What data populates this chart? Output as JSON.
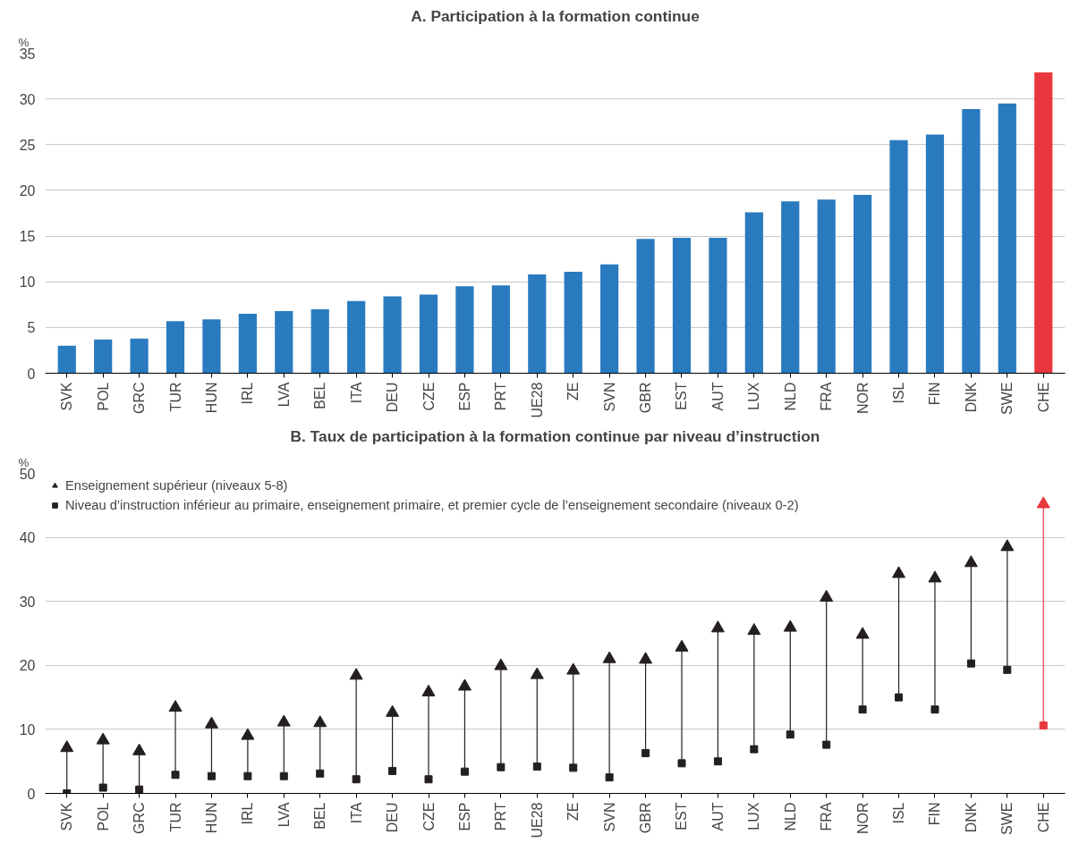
{
  "chart_data": [
    {
      "type": "bar",
      "title": "A. Participation à la formation continue",
      "ylabel": "%",
      "categories": [
        "SVK",
        "POL",
        "GRC",
        "TUR",
        "HUN",
        "IRL",
        "LVA",
        "BEL",
        "ITA",
        "DEU",
        "CZE",
        "ESP",
        "PRT",
        "UE28",
        "ZE",
        "SVN",
        "GBR",
        "EST",
        "AUT",
        "LUX",
        "NLD",
        "FRA",
        "NOR",
        "ISL",
        "FIN",
        "DNK",
        "SWE",
        "CHE"
      ],
      "values": [
        3.0,
        3.7,
        3.8,
        5.7,
        5.9,
        6.5,
        6.8,
        7.0,
        7.9,
        8.4,
        8.6,
        9.5,
        9.6,
        10.8,
        11.1,
        11.9,
        14.7,
        14.8,
        14.8,
        17.6,
        18.8,
        19.0,
        19.5,
        25.5,
        26.1,
        28.9,
        29.5,
        32.9
      ],
      "colors": [
        "#2a7abf",
        "#2a7abf",
        "#2a7abf",
        "#2a7abf",
        "#2a7abf",
        "#2a7abf",
        "#2a7abf",
        "#2a7abf",
        "#2a7abf",
        "#2a7abf",
        "#2a7abf",
        "#2a7abf",
        "#2a7abf",
        "#2a7abf",
        "#2a7abf",
        "#2a7abf",
        "#2a7abf",
        "#2a7abf",
        "#2a7abf",
        "#2a7abf",
        "#2a7abf",
        "#2a7abf",
        "#2a7abf",
        "#2a7abf",
        "#2a7abf",
        "#2a7abf",
        "#2a7abf",
        "#e8383d"
      ],
      "ylim": [
        0,
        35
      ],
      "yticks": [
        0,
        5,
        10,
        15,
        20,
        25,
        30,
        35
      ],
      "grid": "y",
      "legend": false
    },
    {
      "type": "scatter",
      "title": "B. Taux de participation à la formation continue par niveau d’instruction",
      "ylabel": "%",
      "categories": [
        "SVK",
        "POL",
        "GRC",
        "TUR",
        "HUN",
        "IRL",
        "LVA",
        "BEL",
        "ITA",
        "DEU",
        "CZE",
        "ESP",
        "PRT",
        "UE28",
        "ZE",
        "SVN",
        "GBR",
        "EST",
        "AUT",
        "LUX",
        "NLD",
        "FRA",
        "NOR",
        "ISL",
        "FIN",
        "DNK",
        "SWE",
        "CHE"
      ],
      "series": [
        {
          "name": "Enseignement supérieur (niveaux 5-8)",
          "marker": "triangle",
          "colors": [
            "#231f20",
            "#231f20",
            "#231f20",
            "#231f20",
            "#231f20",
            "#231f20",
            "#231f20",
            "#231f20",
            "#231f20",
            "#231f20",
            "#231f20",
            "#231f20",
            "#231f20",
            "#231f20",
            "#231f20",
            "#231f20",
            "#231f20",
            "#231f20",
            "#231f20",
            "#231f20",
            "#231f20",
            "#231f20",
            "#231f20",
            "#231f20",
            "#231f20",
            "#231f20",
            "#231f20",
            "#e8383d"
          ],
          "values": [
            7.1,
            8.3,
            6.6,
            13.4,
            10.8,
            9.0,
            11.1,
            11.0,
            18.4,
            12.6,
            15.8,
            16.7,
            19.9,
            18.5,
            19.2,
            21.0,
            20.9,
            22.8,
            25.8,
            25.4,
            25.9,
            30.6,
            24.8,
            34.3,
            33.6,
            36.0,
            38.5,
            45.2
          ]
        },
        {
          "name": "Niveau d’instruction inférieur au primaire, enseignement primaire, et premier cycle de l’enseignement secondaire (niveaux 0-2)",
          "marker": "square",
          "colors": [
            "#231f20",
            "#231f20",
            "#231f20",
            "#231f20",
            "#231f20",
            "#231f20",
            "#231f20",
            "#231f20",
            "#231f20",
            "#231f20",
            "#231f20",
            "#231f20",
            "#231f20",
            "#231f20",
            "#231f20",
            "#231f20",
            "#231f20",
            "#231f20",
            "#231f20",
            "#231f20",
            "#231f20",
            "#231f20",
            "#231f20",
            "#231f20",
            "#231f20",
            "#231f20",
            "#231f20",
            "#e8383d"
          ],
          "values": [
            0.0,
            0.9,
            0.6,
            2.9,
            2.7,
            2.7,
            2.7,
            3.1,
            2.2,
            3.5,
            2.2,
            3.4,
            4.1,
            4.2,
            4.0,
            2.5,
            6.3,
            4.7,
            5.0,
            6.9,
            9.2,
            7.6,
            13.1,
            15.0,
            13.1,
            20.3,
            19.3,
            10.6
          ]
        }
      ],
      "ylim": [
        0,
        50
      ],
      "yticks": [
        0,
        10,
        20,
        30,
        40,
        50
      ],
      "grid": "y",
      "legend": "top left"
    }
  ]
}
